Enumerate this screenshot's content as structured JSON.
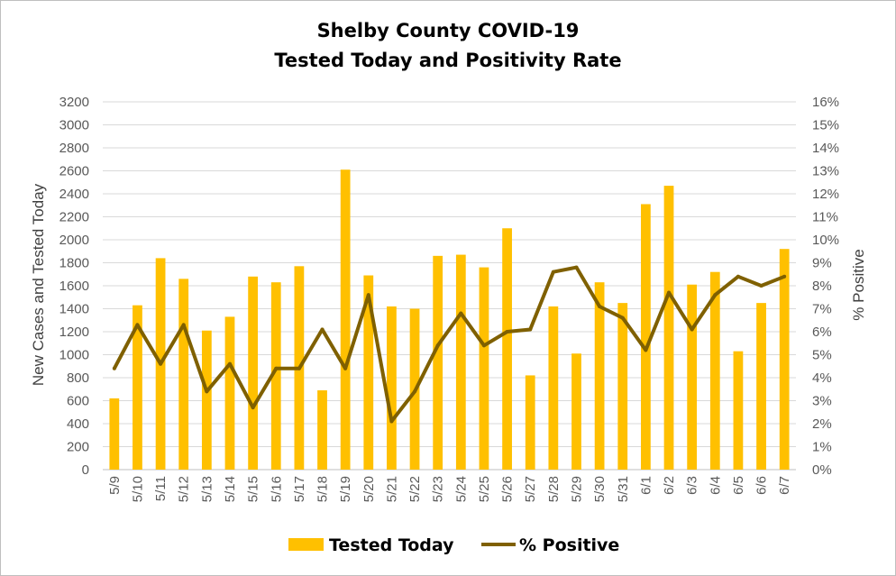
{
  "chart_data": {
    "type": "bar",
    "title_line1": "Shelby County COVID-19",
    "title_line2": "Tested Today and Positivity Rate",
    "categories": [
      "5/9",
      "5/10",
      "5/11",
      "5/12",
      "5/13",
      "5/14",
      "5/15",
      "5/16",
      "5/17",
      "5/18",
      "5/19",
      "5/20",
      "5/21",
      "5/22",
      "5/23",
      "5/24",
      "5/25",
      "5/26",
      "5/27",
      "5/28",
      "5/29",
      "5/30",
      "5/31",
      "6/1",
      "6/2",
      "6/3",
      "6/4",
      "6/5",
      "6/6",
      "6/7"
    ],
    "series": [
      {
        "name": "Tested Today",
        "type": "bar",
        "axis": "left",
        "color": "#FFC000",
        "values": [
          620,
          1430,
          1840,
          1660,
          1210,
          1330,
          1680,
          1630,
          1770,
          690,
          2610,
          1690,
          1420,
          1400,
          1860,
          1870,
          1760,
          2100,
          820,
          1420,
          1010,
          1630,
          1450,
          2310,
          2470,
          1610,
          1720,
          1030,
          1450,
          1920
        ]
      },
      {
        "name": "% Positive",
        "type": "line",
        "axis": "right",
        "color": "#7F6000",
        "values": [
          4.4,
          6.3,
          4.6,
          6.3,
          3.4,
          4.6,
          2.7,
          4.4,
          4.4,
          6.1,
          4.4,
          7.6,
          2.1,
          3.4,
          5.4,
          6.8,
          5.4,
          6.0,
          6.1,
          8.6,
          8.8,
          7.1,
          6.6,
          5.2,
          7.7,
          6.1,
          7.6,
          8.4,
          8.0,
          8.4
        ]
      }
    ],
    "ylabel_left": "New Cases and Tested Today",
    "ylabel_right": "% Positive",
    "ylim_left": [
      0,
      3200
    ],
    "ylim_right": [
      0,
      16
    ],
    "yticks_left": [
      "0",
      "200",
      "400",
      "600",
      "800",
      "1000",
      "1200",
      "1400",
      "1600",
      "1800",
      "2000",
      "2200",
      "2400",
      "2600",
      "2800",
      "3000",
      "3200"
    ],
    "yticks_right": [
      "0%",
      "1%",
      "2%",
      "3%",
      "4%",
      "5%",
      "6%",
      "7%",
      "8%",
      "9%",
      "10%",
      "11%",
      "12%",
      "13%",
      "14%",
      "15%",
      "16%"
    ],
    "grid": true,
    "legend_position": "bottom"
  }
}
